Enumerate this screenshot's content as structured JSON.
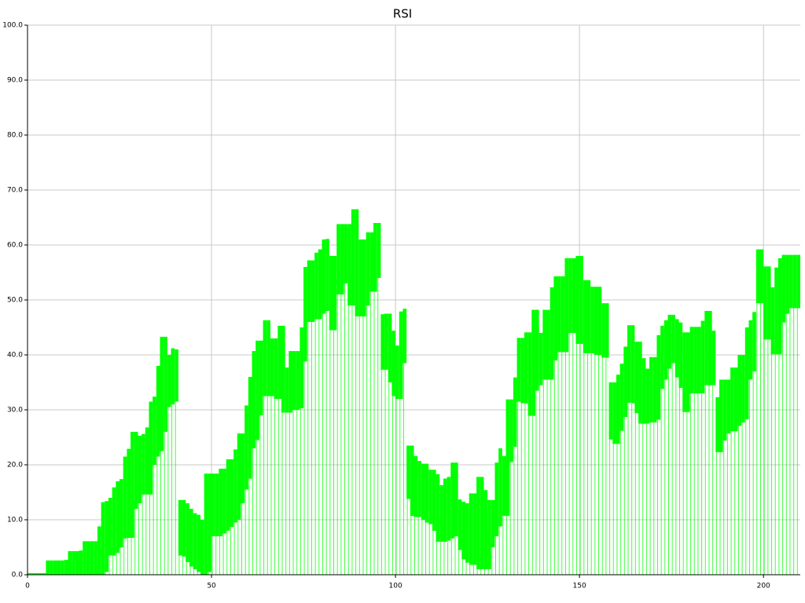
{
  "chart_data": {
    "type": "range_bar",
    "title": "RSI",
    "color": "#00ff00",
    "grid": true,
    "xlim": [
      0,
      210
    ],
    "xticks": [
      0,
      50,
      100,
      150,
      200
    ],
    "ylim": [
      0,
      100
    ],
    "yticks": [
      {
        "value": 0,
        "label": "0.0"
      },
      {
        "value": 10,
        "label": "10.0"
      },
      {
        "value": 20,
        "label": "20.0"
      },
      {
        "value": 30,
        "label": "30.0"
      },
      {
        "value": 40,
        "label": "40.0"
      },
      {
        "value": 50,
        "label": "50.0"
      },
      {
        "value": 60,
        "label": "60.0"
      },
      {
        "value": 70,
        "label": "70.0"
      },
      {
        "value": 80,
        "label": "80.0"
      },
      {
        "value": 90,
        "label": "90.0"
      },
      {
        "value": 100,
        "label": "100.0"
      }
    ],
    "high": [
      0.3,
      0.3,
      0.3,
      0.3,
      0.3,
      2.6,
      2.6,
      2.6,
      2.6,
      2.6,
      2.7,
      4.3,
      4.3,
      4.3,
      4.4,
      6.1,
      6.1,
      6.1,
      6.1,
      8.8,
      13.2,
      13.4,
      14,
      15.9,
      17,
      17.4,
      21.5,
      22.9,
      26,
      26,
      25.3,
      25.6,
      26.8,
      31.5,
      32.4,
      38,
      43.3,
      43.3,
      40,
      41.2,
      41,
      13.6,
      13.6,
      13,
      12,
      11.2,
      10.9,
      10,
      18.4,
      18.4,
      18.4,
      18.4,
      19.3,
      19.3,
      21,
      21,
      22.8,
      25.7,
      25.7,
      30.8,
      36,
      40.7,
      42.6,
      42.6,
      46.3,
      46.3,
      43,
      43,
      45.3,
      45.3,
      37.7,
      40.7,
      40.7,
      40.7,
      45,
      56,
      57.2,
      57.2,
      58.6,
      59.2,
      61,
      61.1,
      58,
      58,
      63.8,
      63.8,
      63.8,
      63.8,
      66.5,
      66.5,
      61,
      61,
      62.3,
      62.3,
      64,
      64,
      47.4,
      47.5,
      47.5,
      44.4,
      41.7,
      47.9,
      48.4,
      23.5,
      23.5,
      21.6,
      20.7,
      20.2,
      20.2,
      19.1,
      19.1,
      18.3,
      16.3,
      17.5,
      17.8,
      20.4,
      20.4,
      13.7,
      13.3,
      13,
      14.8,
      14.8,
      17.8,
      17.8,
      15.4,
      13.6,
      13.6,
      20.4,
      23,
      21.6,
      31.9,
      31.9,
      35.9,
      43.1,
      43.1,
      44.1,
      44.1,
      48.2,
      48.2,
      44,
      48.2,
      48.2,
      52.3,
      54.3,
      54.3,
      54.3,
      57.6,
      57.6,
      57.6,
      58,
      58,
      53.6,
      53.6,
      52.4,
      52.4,
      52.4,
      49.4,
      49.4,
      35,
      35,
      36.4,
      38.4,
      41.5,
      45.4,
      45.4,
      42.4,
      42.4,
      39.4,
      37.5,
      39.6,
      39.6,
      43.6,
      45.3,
      46.3,
      47.3,
      47.3,
      46.5,
      45.9,
      44.1,
      44.1,
      45.1,
      45.1,
      45.1,
      46.2,
      48,
      48,
      44.4,
      32.3,
      35.5,
      35.5,
      35.5,
      37.7,
      37.7,
      40,
      40,
      45,
      46.3,
      47.8,
      59.2,
      59.2,
      56.1,
      56.1,
      52.3,
      55.9,
      57.6,
      58.2,
      58.2,
      58.2,
      58.2,
      58.2
    ],
    "low": [
      0,
      0,
      0,
      0,
      0,
      0,
      0,
      0,
      0,
      0,
      0,
      0,
      0,
      0,
      0,
      0,
      0,
      0,
      0,
      0,
      0,
      0.5,
      3.5,
      3.5,
      4,
      5,
      6.6,
      6.7,
      6.7,
      12,
      13,
      14.6,
      14.6,
      14.6,
      20,
      21.5,
      22.5,
      26,
      30.5,
      31,
      31.5,
      3.5,
      3.3,
      2.3,
      1.5,
      1,
      0.5,
      0,
      0,
      0.5,
      7,
      7,
      7,
      7.5,
      8,
      8.7,
      9.5,
      10,
      13,
      15.5,
      17.5,
      23,
      24.5,
      29,
      32.5,
      32.5,
      32.5,
      32,
      32,
      29.5,
      29.5,
      29.5,
      30,
      30,
      30.3,
      38.8,
      46,
      46,
      46.5,
      46.5,
      47.5,
      48,
      44.5,
      44.5,
      51,
      51,
      53,
      49,
      49,
      47,
      47,
      47,
      49,
      51.5,
      51.5,
      54,
      37.3,
      37.3,
      35,
      32.5,
      32,
      32,
      38.5,
      13.8,
      10.7,
      10.5,
      10.5,
      10,
      9.5,
      9.2,
      8,
      6,
      6,
      6,
      6.2,
      6.6,
      7,
      4.5,
      2.8,
      2.2,
      1.8,
      1.8,
      1,
      1,
      1,
      1,
      5,
      7,
      8.8,
      10.7,
      10.7,
      20.5,
      23.3,
      31.5,
      31.2,
      31.2,
      28.9,
      28.9,
      33.5,
      34.5,
      35.5,
      35.5,
      35.5,
      39,
      40.5,
      40.5,
      40.5,
      44,
      44,
      42,
      42,
      40.3,
      40.3,
      40.3,
      40,
      40,
      39.5,
      39.5,
      24.6,
      23.8,
      23.8,
      26.2,
      28.7,
      31.3,
      31.2,
      29.4,
      27.5,
      27.5,
      27.5,
      27.7,
      27.7,
      28.2,
      33.8,
      35.5,
      37.5,
      38.5,
      35.9,
      34,
      29.6,
      29.6,
      33,
      33,
      33,
      33,
      34.5,
      34.5,
      34.5,
      22.3,
      22.3,
      24.4,
      25.7,
      26.1,
      26.1,
      27.1,
      27.7,
      28.3,
      35.5,
      37,
      49.4,
      49.4,
      42.8,
      42.8,
      40.1,
      40.1,
      40.1,
      45.9,
      47.5,
      48.5,
      48.5,
      48.5
    ]
  }
}
